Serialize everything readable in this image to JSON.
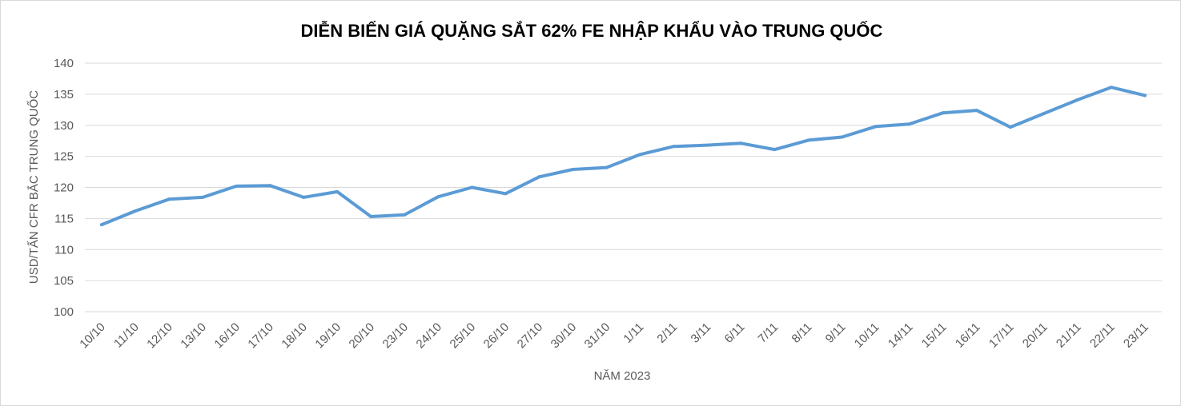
{
  "chart_data": {
    "type": "line",
    "title": "DIỄN BIẾN GIÁ QUẶNG SẮT 62% FE NHẬP KHẨU VÀO TRUNG QUỐC",
    "xlabel": "NĂM 2023",
    "ylabel": "USD/TẤN CFR BẮC TRUNG QUỐC",
    "ylim": [
      100,
      140
    ],
    "yticks": [
      "100",
      "105",
      "110",
      "115",
      "120",
      "125",
      "130",
      "135",
      "140"
    ],
    "grid": true,
    "line_color": "#5b9bd5",
    "categories": [
      "10/10",
      "11/10",
      "12/10",
      "13/10",
      "16/10",
      "17/10",
      "18/10",
      "19/10",
      "20/10",
      "23/10",
      "24/10",
      "25/10",
      "26/10",
      "27/10",
      "30/10",
      "31/10",
      "1/11",
      "2/11",
      "3/11",
      "6/11",
      "7/11",
      "8/11",
      "9/11",
      "10/11",
      "14/11",
      "15/11",
      "16/11",
      "17/11",
      "20/11",
      "21/11",
      "22/11",
      "23/11"
    ],
    "series": [
      {
        "values": [
          114.0,
          116.2,
          118.1,
          118.4,
          120.2,
          120.3,
          118.4,
          119.3,
          115.3,
          115.6,
          118.5,
          120.0,
          119.0,
          121.7,
          122.9,
          123.2,
          125.3,
          126.6,
          126.8,
          127.1,
          126.1,
          127.6,
          128.1,
          129.8,
          130.2,
          132.0,
          132.4,
          129.7,
          131.9,
          134.1,
          136.1,
          134.8
        ]
      }
    ]
  }
}
